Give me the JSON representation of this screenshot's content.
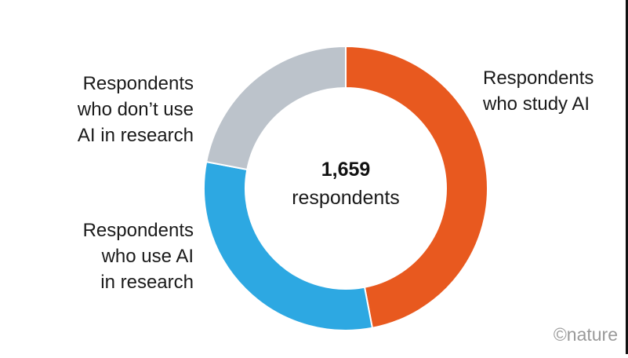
{
  "chart_data": {
    "type": "pie",
    "style": "donut",
    "total_label": {
      "value": "1,659",
      "unit": "respondents"
    },
    "slices": [
      {
        "label": "Respondents who study AI",
        "label_lines": [
          "Respondents",
          "who study AI"
        ],
        "value": 47,
        "color": "#e8591f"
      },
      {
        "label": "Respondents who use AI in research",
        "label_lines": [
          "Respondents",
          "who use AI",
          "in research"
        ],
        "value": 31,
        "color": "#2da8e2"
      },
      {
        "label": "Respondents who don’t use AI in research",
        "label_lines": [
          "Respondents",
          "who don’t use",
          "AI in research"
        ],
        "value": 22,
        "color": "#bcc3cb"
      }
    ]
  },
  "credit": "©nature"
}
